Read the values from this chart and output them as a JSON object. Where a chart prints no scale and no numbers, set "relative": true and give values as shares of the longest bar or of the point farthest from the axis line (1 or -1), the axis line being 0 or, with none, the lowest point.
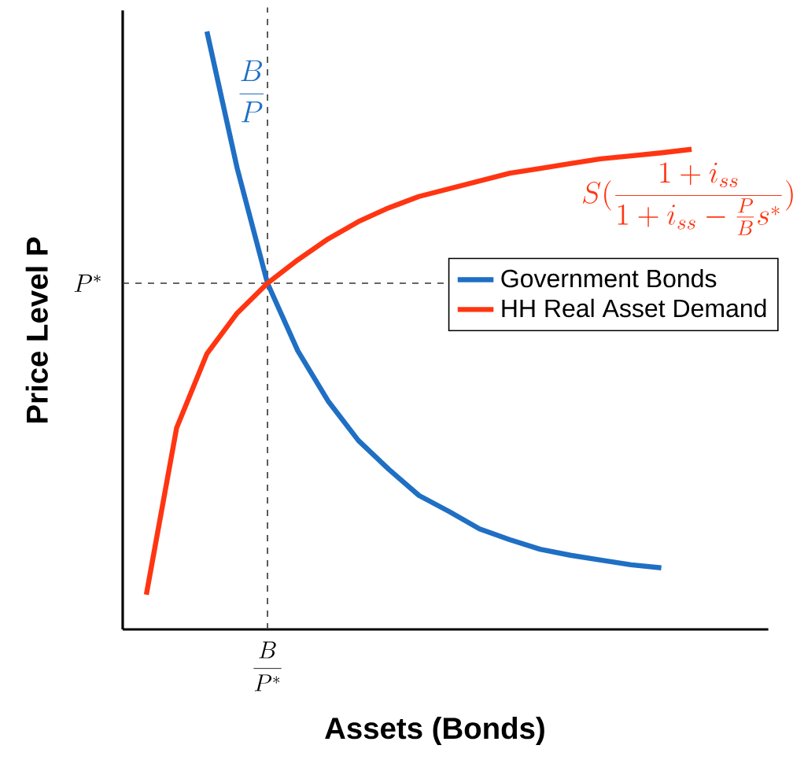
{
  "chart_data": {
    "type": "line",
    "relative": true,
    "xlabel": "Assets (Bonds)",
    "ylabel": "Price Level P",
    "legend": "right",
    "marker": "none",
    "categories": [
      null,
      null,
      null,
      null,
      null,
      null,
      null,
      null,
      null,
      null,
      null,
      null,
      null,
      null,
      null,
      null,
      null,
      null,
      null
    ],
    "series": [
      {
        "name": "Government Bonds",
        "color": "#1f6fc4",
        "values": [
          null,
          null,
          1.0,
          0.771,
          0.579,
          0.466,
          0.382,
          0.316,
          0.268,
          0.224,
          0.197,
          0.168,
          0.15,
          0.134,
          0.124,
          0.116,
          0.108,
          0.103,
          null
        ]
      },
      {
        "name": "HH Real Asset Demand",
        "color": "#ff3512",
        "values": [
          0.058,
          0.337,
          0.461,
          0.529,
          0.579,
          0.618,
          0.653,
          0.682,
          0.705,
          0.724,
          0.737,
          0.75,
          0.763,
          0.771,
          0.779,
          0.787,
          0.792,
          0.797,
          0.803
        ]
      }
    ],
    "ref_lines": [
      {
        "axis": "y",
        "value": 0.579,
        "label": "P^*",
        "line_style": "dashed",
        "color": "#333333"
      }
    ],
    "annotations": [
      "\\frac{B}{P}",
      "\\frac{B}{P^*}",
      "S(\\frac{1+i_{ss}}{1+i_{ss}-\\frac{P}{B}s^*})"
    ]
  }
}
